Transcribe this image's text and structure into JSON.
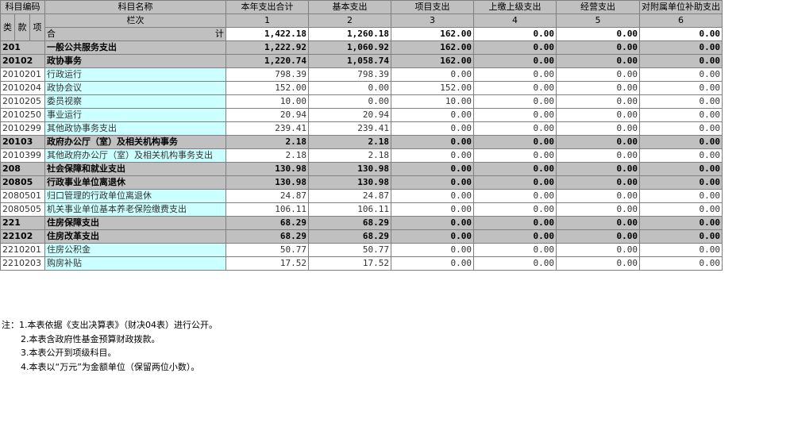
{
  "headers": {
    "code": "科目编码",
    "name": "科目名称",
    "cols": [
      "本年支出合计",
      "基本支出",
      "项目支出",
      "上缴上级支出",
      "经营支出",
      "对附属单位补助支出"
    ],
    "lei": "类",
    "kuan": "款",
    "xiang": "项",
    "lanci": "栏次",
    "col_nums": [
      "1",
      "2",
      "3",
      "4",
      "5",
      "6"
    ]
  },
  "total": {
    "label_left": "合",
    "label_right": "计",
    "values": [
      "1,422.18",
      "1,260.18",
      "162.00",
      "0.00",
      "0.00",
      "0.00"
    ]
  },
  "rows": [
    {
      "code": "201",
      "name": "一般公共服务支出",
      "level": "bold",
      "values": [
        "1,222.92",
        "1,060.92",
        "162.00",
        "0.00",
        "0.00",
        "0.00"
      ]
    },
    {
      "code": "20102",
      "name": "政协事务",
      "level": "bold",
      "values": [
        "1,220.74",
        "1,058.74",
        "162.00",
        "0.00",
        "0.00",
        "0.00"
      ]
    },
    {
      "code": "2010201",
      "name": "行政运行",
      "level": "normal",
      "values": [
        "798.39",
        "798.39",
        "0.00",
        "0.00",
        "0.00",
        "0.00"
      ]
    },
    {
      "code": "2010204",
      "name": "政协会议",
      "level": "normal",
      "values": [
        "152.00",
        "0.00",
        "152.00",
        "0.00",
        "0.00",
        "0.00"
      ]
    },
    {
      "code": "2010205",
      "name": "委员视察",
      "level": "normal",
      "values": [
        "10.00",
        "0.00",
        "10.00",
        "0.00",
        "0.00",
        "0.00"
      ]
    },
    {
      "code": "2010250",
      "name": "事业运行",
      "level": "normal",
      "values": [
        "20.94",
        "20.94",
        "0.00",
        "0.00",
        "0.00",
        "0.00"
      ]
    },
    {
      "code": "2010299",
      "name": "其他政协事务支出",
      "level": "normal",
      "values": [
        "239.41",
        "239.41",
        "0.00",
        "0.00",
        "0.00",
        "0.00"
      ]
    },
    {
      "code": "20103",
      "name": "政府办公厅（室）及相关机构事务",
      "level": "bold",
      "values": [
        "2.18",
        "2.18",
        "0.00",
        "0.00",
        "0.00",
        "0.00"
      ]
    },
    {
      "code": "2010399",
      "name": "其他政府办公厅（室）及相关机构事务支出",
      "level": "normal",
      "values": [
        "2.18",
        "2.18",
        "0.00",
        "0.00",
        "0.00",
        "0.00"
      ]
    },
    {
      "code": "208",
      "name": "社会保障和就业支出",
      "level": "bold",
      "values": [
        "130.98",
        "130.98",
        "0.00",
        "0.00",
        "0.00",
        "0.00"
      ]
    },
    {
      "code": "20805",
      "name": "行政事业单位离退休",
      "level": "bold",
      "values": [
        "130.98",
        "130.98",
        "0.00",
        "0.00",
        "0.00",
        "0.00"
      ]
    },
    {
      "code": "2080501",
      "name": "归口管理的行政单位离退休",
      "level": "normal",
      "values": [
        "24.87",
        "24.87",
        "0.00",
        "0.00",
        "0.00",
        "0.00"
      ]
    },
    {
      "code": "2080505",
      "name": "机关事业单位基本养老保险缴费支出",
      "level": "normal",
      "values": [
        "106.11",
        "106.11",
        "0.00",
        "0.00",
        "0.00",
        "0.00"
      ]
    },
    {
      "code": "221",
      "name": "住房保障支出",
      "level": "bold",
      "values": [
        "68.29",
        "68.29",
        "0.00",
        "0.00",
        "0.00",
        "0.00"
      ]
    },
    {
      "code": "22102",
      "name": "住房改革支出",
      "level": "bold",
      "values": [
        "68.29",
        "68.29",
        "0.00",
        "0.00",
        "0.00",
        "0.00"
      ]
    },
    {
      "code": "2210201",
      "name": "住房公积金",
      "level": "normal",
      "values": [
        "50.77",
        "50.77",
        "0.00",
        "0.00",
        "0.00",
        "0.00"
      ]
    },
    {
      "code": "2210203",
      "name": "购房补贴",
      "level": "normal",
      "values": [
        "17.52",
        "17.52",
        "0.00",
        "0.00",
        "0.00",
        "0.00"
      ]
    }
  ],
  "notes": [
    "注：1.本表依据《支出决算表》（财决04表）进行公开。",
    "2.本表含政府性基金预算财政拨款。",
    "3.本表公开到项级科目。",
    "4.本表以“万元”为金额单位（保留两位小数）。"
  ]
}
